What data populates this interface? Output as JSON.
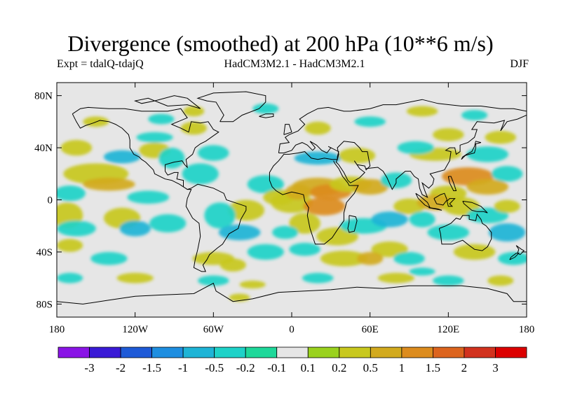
{
  "title": "Divergence (smoothed) at 200 hPa (10**6 m/s)",
  "experiment_label": "Expt = tdalQ-tdajQ",
  "model_label": "HadCM3M2.1 - HadCM3M2.1",
  "season_label": "DJF",
  "chart_data": {
    "type": "heatmap",
    "projection": "equirectangular world map",
    "x_axis": {
      "range": [
        -180,
        180
      ],
      "ticks": [
        "180",
        "120W",
        "60W",
        "0",
        "60E",
        "120E",
        "180"
      ]
    },
    "y_axis": {
      "range": [
        -90,
        90
      ],
      "ticks": [
        "80N",
        "40N",
        "0",
        "40S",
        "80S"
      ]
    },
    "colorbar": {
      "labels": [
        "-3",
        "-2",
        "-1.5",
        "-1",
        "-0.5",
        "-0.2",
        "-0.1",
        "0.1",
        "0.2",
        "0.5",
        "1",
        "1.5",
        "2",
        "3"
      ],
      "colors": [
        "#8a14e6",
        "#3a1ad6",
        "#1e5ad7",
        "#1e8ee0",
        "#1eb4d6",
        "#1ed2c8",
        "#1ed89a",
        "#e6e6e6",
        "#9ad21e",
        "#c8c81e",
        "#d2aa1e",
        "#dc8c1e",
        "#dc641e",
        "#d2321e",
        "#dc0000"
      ]
    }
  }
}
